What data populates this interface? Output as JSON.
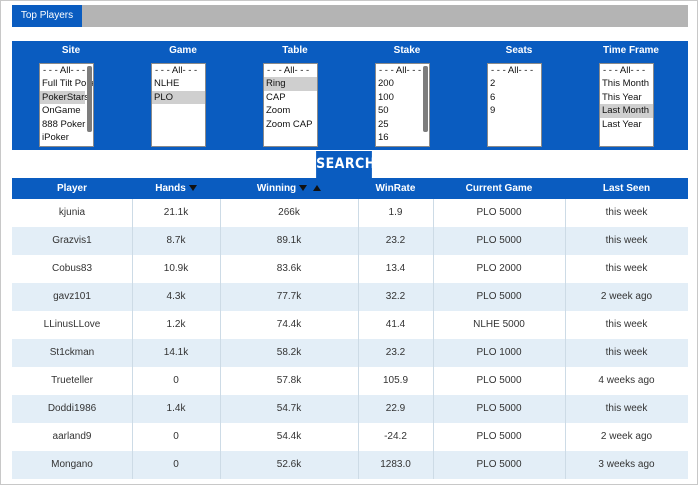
{
  "tabs": [
    {
      "label": "Top Players"
    }
  ],
  "filters": [
    {
      "label": "Site",
      "options": [
        "- - - All- - -",
        "Full Tilt Poker",
        "PokerStars",
        "OnGame",
        "888 Poker",
        "iPoker"
      ],
      "selected": [
        2
      ],
      "scrollbar": true
    },
    {
      "label": "Game",
      "options": [
        "- - - All- - -",
        "NLHE",
        "PLO"
      ],
      "selected": [
        2
      ],
      "scrollbar": false
    },
    {
      "label": "Table",
      "options": [
        "- - - All- - -",
        "Ring",
        "CAP",
        "Zoom",
        "Zoom CAP"
      ],
      "selected": [
        1
      ],
      "scrollbar": false
    },
    {
      "label": "Stake",
      "options": [
        "- - - All- - -",
        "200",
        "100",
        "50",
        "25",
        "16"
      ],
      "selected": [],
      "scrollbar": true
    },
    {
      "label": "Seats",
      "options": [
        "- - - All- - -",
        "2",
        "6",
        "9"
      ],
      "selected": [],
      "scrollbar": false
    },
    {
      "label": "Time Frame",
      "options": [
        "- - - All- - -",
        "This Month",
        "This Year",
        "Last Month",
        "Last Year"
      ],
      "selected": [
        3
      ],
      "scrollbar": false
    }
  ],
  "search_label": "SEARCH",
  "table": {
    "columns": [
      "Player",
      "Hands",
      "Winning",
      "WinRate",
      "Current Game",
      "Last Seen"
    ],
    "rows": [
      [
        "kjunia",
        "21.1k",
        "266k",
        "1.9",
        "PLO 5000",
        "this week"
      ],
      [
        "Grazvis1",
        "8.7k",
        "89.1k",
        "23.2",
        "PLO 5000",
        "this week"
      ],
      [
        "Cobus83",
        "10.9k",
        "83.6k",
        "13.4",
        "PLO 2000",
        "this week"
      ],
      [
        "gavz101",
        "4.3k",
        "77.7k",
        "32.2",
        "PLO 5000",
        "2 week ago"
      ],
      [
        "LLinusLLove",
        "1.2k",
        "74.4k",
        "41.4",
        "NLHE 5000",
        "this week"
      ],
      [
        "St1ckman",
        "14.1k",
        "58.2k",
        "23.2",
        "PLO 1000",
        "this week"
      ],
      [
        "Trueteller",
        "0",
        "57.8k",
        "105.9",
        "PLO 5000",
        "4 weeks ago"
      ],
      [
        "Doddi1986",
        "1.4k",
        "54.7k",
        "22.9",
        "PLO 5000",
        "this week"
      ],
      [
        "aarland9",
        "0",
        "54.4k",
        "-24.2",
        "PLO 5000",
        "2 week ago"
      ],
      [
        "Mongano",
        "0",
        "52.6k",
        "1283.0",
        "PLO 5000",
        "3 weeks ago"
      ]
    ]
  },
  "colors": {
    "accent": "#0a5cc0",
    "row_alt": "#e3eef7",
    "tabbar": "#b4b4b4"
  }
}
